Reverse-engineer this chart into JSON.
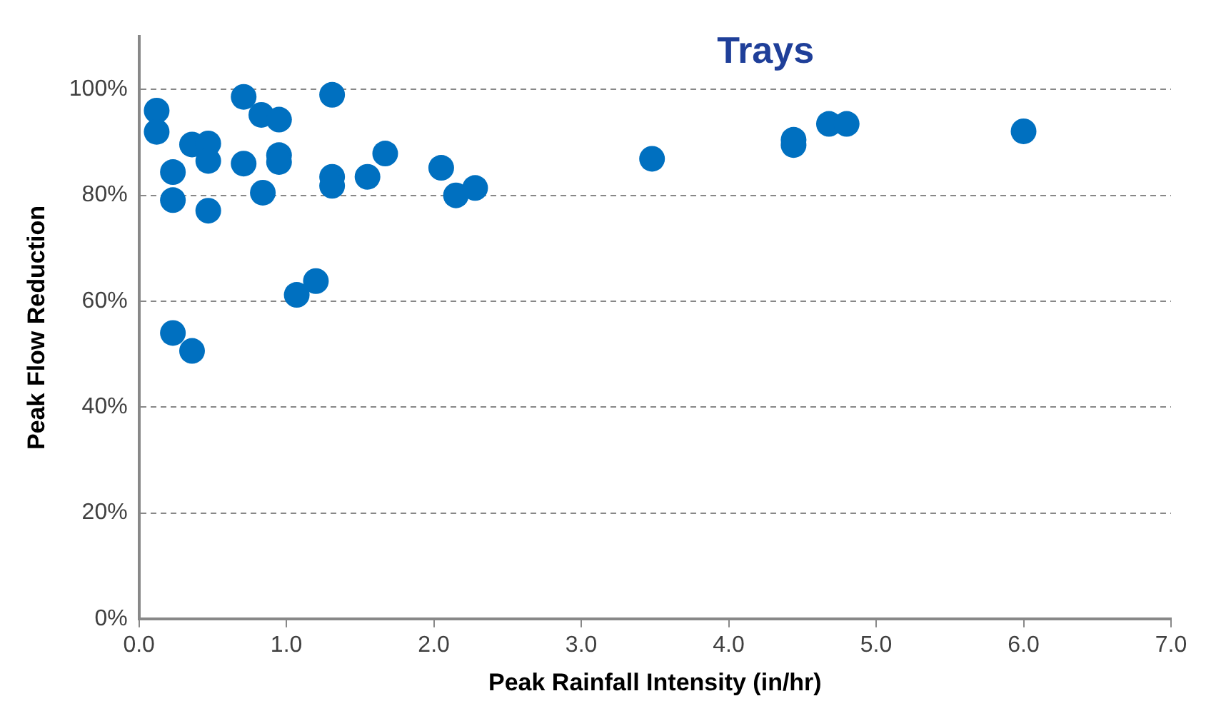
{
  "chart_data": {
    "type": "scatter",
    "title": "Trays",
    "xlabel": "Peak Rainfall Intensity (in/hr)",
    "ylabel": "Peak Flow Reduction",
    "series": [
      {
        "color": "#0070c0",
        "x": [
          0.12,
          0.12,
          0.71,
          1.31,
          0.83,
          0.95,
          0.36,
          0.47,
          0.47,
          0.23,
          0.71,
          0.95,
          0.95,
          1.31,
          1.31,
          1.55,
          1.67,
          2.05,
          2.15,
          2.28,
          0.23,
          0.47,
          0.84,
          1.07,
          1.2,
          0.23,
          0.36,
          3.48,
          4.44,
          4.44,
          4.68,
          4.8,
          6.0
        ],
        "values": [
          96,
          92,
          98.6,
          99,
          95.2,
          94.3,
          89.6,
          89.8,
          86.5,
          84.4,
          86,
          87.6,
          86.3,
          83.5,
          81.8,
          83.5,
          87.9,
          85.2,
          80,
          81.4,
          79.1,
          77.1,
          80.5,
          61.2,
          63.8,
          54,
          50.6,
          86.9,
          89.5,
          90.5,
          93.5,
          93.5,
          92.1
        ]
      }
    ],
    "xlim": [
      0,
      7
    ],
    "ylim": [
      0,
      110
    ],
    "xticks": [
      {
        "value": 0,
        "label": "0.0"
      },
      {
        "value": 1,
        "label": "1.0"
      },
      {
        "value": 2,
        "label": "2.0"
      },
      {
        "value": 3,
        "label": "3.0"
      },
      {
        "value": 4,
        "label": "4.0"
      },
      {
        "value": 5,
        "label": "5.0"
      },
      {
        "value": 6,
        "label": "6.0"
      },
      {
        "value": 7,
        "label": "7.0"
      }
    ],
    "yticks": [
      {
        "value": 0,
        "label": "0%"
      },
      {
        "value": 20,
        "label": "20%"
      },
      {
        "value": 40,
        "label": "40%"
      },
      {
        "value": 60,
        "label": "60%"
      },
      {
        "value": 80,
        "label": "80%"
      },
      {
        "value": 100,
        "label": "100%"
      }
    ],
    "grid": "y",
    "line_style": "dashed",
    "marker": "circle",
    "legend": false
  }
}
